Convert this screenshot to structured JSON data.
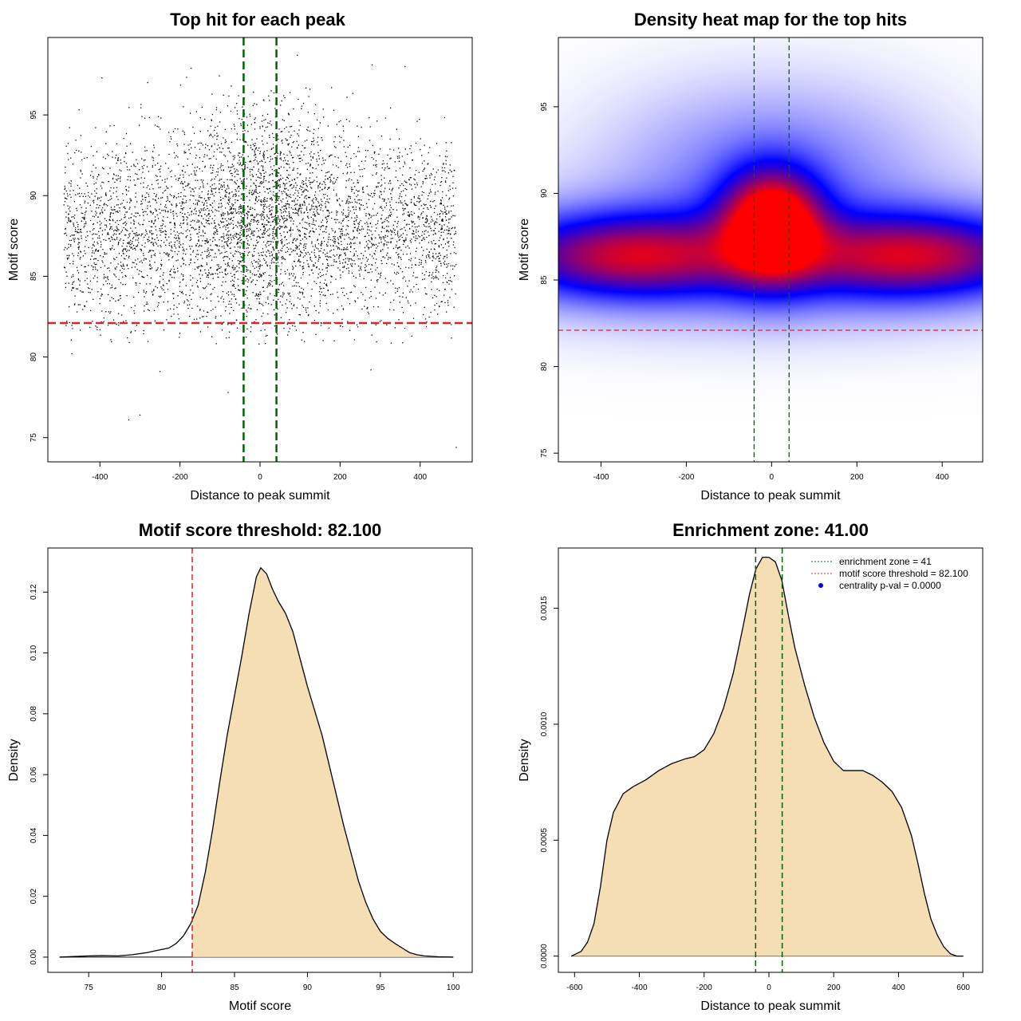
{
  "chart_data": [
    {
      "id": "top-hits",
      "type": "scatter",
      "title": "Top hit for each peak",
      "xlabel": "Distance to peak summit",
      "ylabel": "Motif score",
      "xlim": [
        -530,
        530
      ],
      "ylim": [
        73.5,
        99.8
      ],
      "xticks": [
        -400,
        -200,
        0,
        200,
        400
      ],
      "yticks": [
        75,
        80,
        85,
        90,
        95
      ],
      "hlines": [
        {
          "y": 82.1,
          "color": "#d62728",
          "style": "dashed"
        }
      ],
      "vlines": [
        {
          "x": -41,
          "color": "#006400",
          "style": "dashed"
        },
        {
          "x": 41,
          "color": "#006400",
          "style": "dashed"
        }
      ],
      "point_color": "#000000",
      "cloud": {
        "n": 5200,
        "x_range": [
          -490,
          490
        ],
        "center_score": 87.8,
        "score_sd": 2.7,
        "seed": 7
      },
      "outliers": [
        {
          "x": -328,
          "y": 76.1
        },
        {
          "x": -300,
          "y": 76.4
        },
        {
          "x": 490,
          "y": 74.4
        },
        {
          "x": -80,
          "y": 77.8
        },
        {
          "x": -470,
          "y": 80.2
        },
        {
          "x": 93,
          "y": 98.7
        },
        {
          "x": 277,
          "y": 79.2
        },
        {
          "x": -250,
          "y": 79.1
        },
        {
          "x": 362,
          "y": 98.0
        },
        {
          "x": 280,
          "y": 98.1
        },
        {
          "x": -172,
          "y": 97.9
        },
        {
          "x": -395,
          "y": 97.3
        }
      ]
    },
    {
      "id": "heatmap",
      "type": "heatmap",
      "title": "Density heat map for the top hits",
      "xlabel": "Distance to peak summit",
      "ylabel": "Motif score",
      "xlim": [
        -500,
        495
      ],
      "ylim": [
        74.5,
        99.0
      ],
      "xticks": [
        -400,
        -200,
        0,
        200,
        400
      ],
      "yticks": [
        75,
        80,
        85,
        90,
        95
      ],
      "hlines": [
        {
          "y": 82.1,
          "color": "#d62728",
          "style": "dashed"
        }
      ],
      "vlines": [
        {
          "x": -41,
          "color": "#006400",
          "style": "dashed"
        },
        {
          "x": 41,
          "color": "#006400",
          "style": "dashed"
        }
      ],
      "colors": [
        "#ffffff",
        "#0000ff",
        "#ff0000"
      ]
    },
    {
      "id": "score-density",
      "type": "area",
      "title": "Motif score threshold: 82.100",
      "xlabel": "Motif score",
      "ylabel": "Density",
      "xlim": [
        72.2,
        101.3
      ],
      "ylim": [
        -0.005,
        0.1345
      ],
      "xticks": [
        75,
        80,
        85,
        90,
        95,
        100
      ],
      "yticks": [
        0.0,
        0.02,
        0.04,
        0.06,
        0.08,
        0.1,
        0.12
      ],
      "ytick_labels": [
        "0.00",
        "0.02",
        "0.04",
        "0.06",
        "0.08",
        "0.10",
        "0.12"
      ],
      "threshold": 82.1,
      "fill": "#f5deb3",
      "line_color": "#000000",
      "vlines": [
        {
          "x": 82.1,
          "color": "#d62728",
          "style": "dashed"
        }
      ],
      "x": [
        73,
        74,
        75,
        76,
        77,
        78,
        79,
        79.5,
        80,
        80.5,
        81,
        81.5,
        82,
        82.5,
        83,
        83.5,
        84,
        84.5,
        85,
        85.5,
        86,
        86.5,
        86.8,
        87.2,
        87.6,
        88,
        88.5,
        89,
        89.5,
        90,
        90.5,
        91,
        91.5,
        92,
        92.5,
        93,
        93.5,
        94,
        94.5,
        95,
        95.5,
        96,
        96.5,
        97,
        97.5,
        98,
        99,
        100
      ],
      "values": [
        0.0,
        0.0002,
        0.0004,
        0.0005,
        0.0004,
        0.0008,
        0.0015,
        0.002,
        0.0025,
        0.003,
        0.0045,
        0.007,
        0.011,
        0.017,
        0.028,
        0.042,
        0.058,
        0.073,
        0.086,
        0.099,
        0.113,
        0.125,
        0.128,
        0.126,
        0.121,
        0.117,
        0.113,
        0.107,
        0.098,
        0.089,
        0.081,
        0.073,
        0.063,
        0.053,
        0.043,
        0.034,
        0.025,
        0.018,
        0.0125,
        0.0085,
        0.0062,
        0.0045,
        0.003,
        0.0015,
        0.0008,
        0.0004,
        0.0001,
        0.0
      ]
    },
    {
      "id": "distance-density",
      "type": "area",
      "title": "Enrichment zone: 41.00",
      "xlabel": "Distance to peak summit",
      "ylabel": "Density",
      "xlim": [
        -650,
        660
      ],
      "ylim": [
        -7e-05,
        0.00176
      ],
      "xticks": [
        -600,
        -400,
        -200,
        0,
        200,
        400,
        600
      ],
      "yticks": [
        0.0,
        0.0005,
        0.001,
        0.0015
      ],
      "ytick_labels": [
        "0.0000",
        "0.0005",
        "0.0010",
        "0.0015"
      ],
      "fill": "#f5deb3",
      "line_color": "#000000",
      "vlines": [
        {
          "x": -41,
          "color": "#006400",
          "style": "dashed"
        },
        {
          "x": 41,
          "color": "#006400",
          "style": "dashed"
        }
      ],
      "x": [
        -610,
        -580,
        -560,
        -540,
        -520,
        -500,
        -480,
        -450,
        -420,
        -380,
        -340,
        -300,
        -260,
        -230,
        -200,
        -170,
        -140,
        -110,
        -80,
        -60,
        -40,
        -20,
        0,
        20,
        40,
        60,
        80,
        110,
        140,
        170,
        200,
        230,
        260,
        290,
        320,
        350,
        380,
        410,
        440,
        460,
        480,
        500,
        520,
        540,
        560,
        580,
        600
      ],
      "values": [
        0.0,
        2e-05,
        6e-05,
        0.00014,
        0.0003,
        0.0005,
        0.00062,
        0.0007,
        0.00073,
        0.00076,
        0.0008,
        0.00083,
        0.00085,
        0.00086,
        0.00089,
        0.00096,
        0.00107,
        0.00122,
        0.00142,
        0.00156,
        0.00167,
        0.00172,
        0.00172,
        0.0017,
        0.00162,
        0.00147,
        0.00133,
        0.00117,
        0.00103,
        0.00092,
        0.00084,
        0.0008,
        0.0008,
        0.0008,
        0.00078,
        0.00075,
        0.00071,
        0.00064,
        0.00052,
        0.0004,
        0.00027,
        0.00016,
        9e-05,
        4e-05,
        1e-05,
        0.0,
        0.0
      ],
      "legend": {
        "position": "top-right",
        "entries": [
          {
            "label": "enrichment zone = 41",
            "kind": "dotted-line",
            "color": "#006400"
          },
          {
            "label": "motif score threshold = 82.100",
            "kind": "dotted-line",
            "color": "#d62728"
          },
          {
            "label": "centrality p-val = 0.0000",
            "kind": "dot",
            "color": "#0000ff"
          }
        ]
      }
    }
  ]
}
